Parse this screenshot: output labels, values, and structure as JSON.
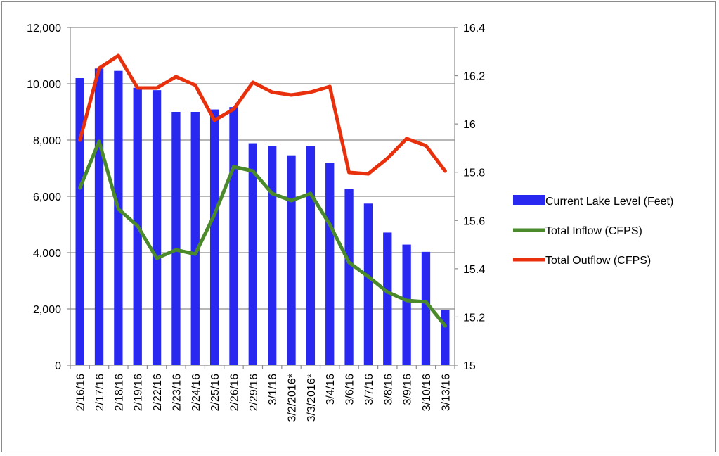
{
  "chart_data": {
    "type": "bar",
    "categories": [
      "2/16/16",
      "2/17/16",
      "2/18/16",
      "2/19/16",
      "2/22/16",
      "2/23/16",
      "2/24/16",
      "2/25/16",
      "2/26/16",
      "2/29/16",
      "3/1/16",
      "3/2/2016*",
      "3/3/2016*",
      "3/4/16",
      "3/6/16",
      "3/7/16",
      "3/8/16",
      "3/9/16",
      "3/10/16",
      "3/13/16"
    ],
    "series": [
      {
        "name": "Current Lake Level (Feet)",
        "type": "bar",
        "axis": "right",
        "color": "#2828f0",
        "values": [
          16.19,
          16.23,
          16.22,
          16.15,
          16.14,
          16.05,
          16.05,
          16.06,
          16.07,
          15.92,
          15.91,
          15.87,
          15.91,
          15.84,
          15.73,
          15.67,
          15.55,
          15.5,
          15.47,
          15.23
        ]
      },
      {
        "name": "Total Inflow (CFPS)",
        "type": "line",
        "axis": "left",
        "color": "#4a8a2a",
        "values": [
          6300,
          7950,
          5550,
          4950,
          3800,
          4100,
          3950,
          5350,
          7050,
          6900,
          6100,
          5850,
          6100,
          5000,
          3650,
          3150,
          2600,
          2300,
          2250,
          1400
        ]
      },
      {
        "name": "Total Outflow (CFPS)",
        "type": "line",
        "axis": "left",
        "color": "#e8300c",
        "values": [
          8000,
          10550,
          11000,
          9850,
          9850,
          10250,
          9950,
          8700,
          9100,
          10050,
          9700,
          9600,
          9700,
          9900,
          6850,
          6800,
          7350,
          8050,
          7800,
          6900
        ]
      }
    ],
    "y_left": {
      "min": 0,
      "max": 12000,
      "ticks": [
        "0",
        "2,000",
        "4,000",
        "6,000",
        "8,000",
        "10,000",
        "12,000"
      ]
    },
    "y_right": {
      "min": 15,
      "max": 16.4,
      "ticks": [
        "15",
        "15.2",
        "15.4",
        "15.6",
        "15.8",
        "16",
        "16.2",
        "16.4"
      ]
    },
    "grid": true,
    "legend_position": "right"
  }
}
